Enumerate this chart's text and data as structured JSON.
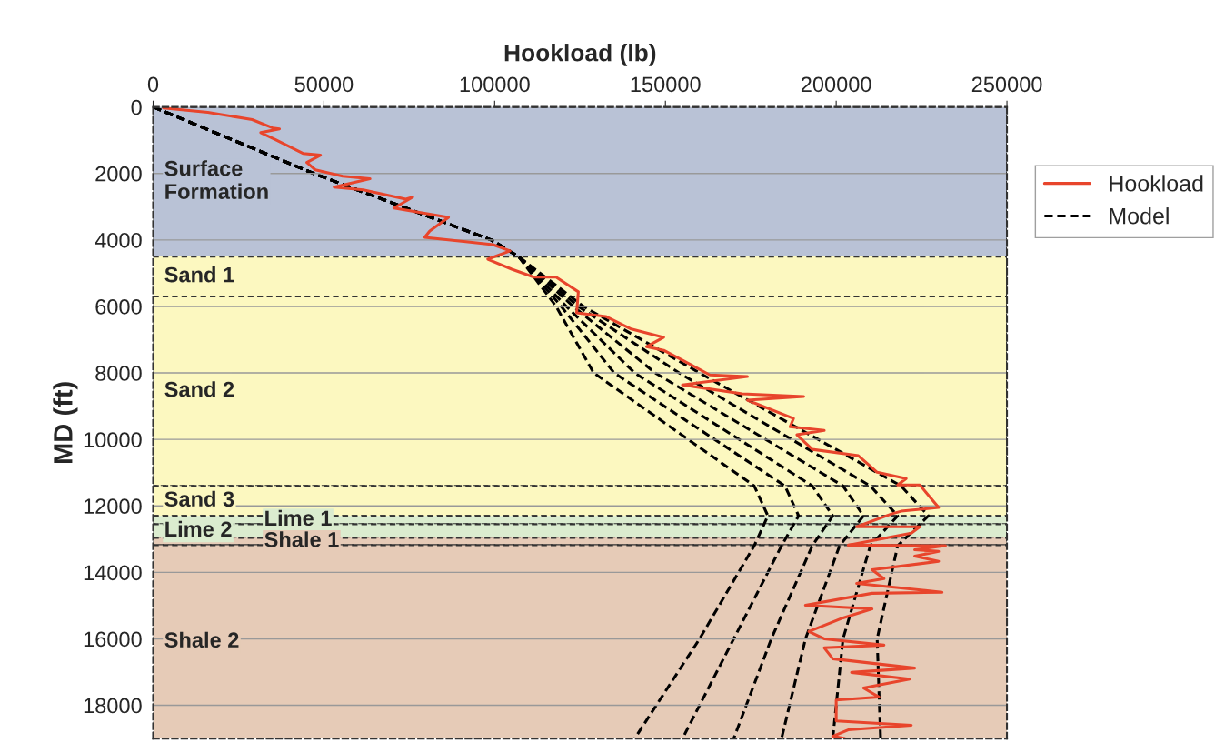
{
  "chart_data": {
    "type": "line",
    "xlabel": "Hookload (lb)",
    "ylabel": "MD (ft)",
    "xlim": [
      0,
      250000
    ],
    "xticks": [
      0,
      50000,
      100000,
      150000,
      200000,
      250000
    ],
    "ylim": [
      19000,
      0
    ],
    "yticks": [
      0,
      2000,
      4000,
      6000,
      8000,
      10000,
      12000,
      14000,
      16000,
      18000
    ],
    "grid": "y",
    "legend": "right",
    "bands": [
      {
        "axis": "y",
        "from": 0,
        "to": 4500,
        "label": "Surface\nFormation",
        "color": "#b9c2d6"
      },
      {
        "axis": "y",
        "from": 4500,
        "to": 5700,
        "label": "Sand 1",
        "color": "#fcf8c0"
      },
      {
        "axis": "y",
        "from": 5700,
        "to": 11400,
        "label": "Sand 2",
        "color": "#fcf8c0"
      },
      {
        "axis": "y",
        "from": 11400,
        "to": 12300,
        "label": "Sand 3",
        "color": "#fcf8c0"
      },
      {
        "axis": "y",
        "from": 12300,
        "to": 12550,
        "label": "Lime 1",
        "color": "#dbeccf"
      },
      {
        "axis": "y",
        "from": 12550,
        "to": 12960,
        "label": "Lime 2",
        "color": "#dbeccf"
      },
      {
        "axis": "y",
        "from": 12960,
        "to": 13180,
        "label": "Shale 1",
        "color": "#e6cbb7"
      },
      {
        "axis": "y",
        "from": 13180,
        "to": 19000,
        "label": "Shale 2",
        "color": "#e6cbb7"
      }
    ],
    "series": [
      {
        "name": "Hookload",
        "color": "#e8452c",
        "line_style": "solid",
        "x": [
          3000,
          16000,
          29000,
          35000,
          37000,
          31500,
          36000,
          44000,
          49000,
          45000,
          47500,
          55500,
          63500,
          53000,
          61500,
          74000,
          76000,
          70500,
          86500,
          81000,
          79500,
          99500,
          104500,
          98000,
          105000,
          111500,
          118000,
          124500,
          124000,
          132500,
          140000,
          149500,
          144500,
          149500,
          155000,
          163000,
          174000,
          155000,
          172500,
          190500,
          174000,
          187500,
          186500,
          196500,
          188500,
          193000,
          206500,
          212000,
          220500,
          218000,
          224500,
          230000,
          219000,
          216000,
          206000,
          224500,
          222000,
          203500,
          232000,
          223000,
          230000,
          223000,
          230000,
          210500,
          214000,
          206000,
          231000,
          210500,
          191000,
          210500,
          202000,
          192000,
          196500,
          214000,
          196500,
          199000,
          223000,
          204500,
          221500,
          208000,
          212500,
          200000,
          200000,
          222000,
          203500,
          199000,
          202500
        ],
        "values": [
          30,
          160,
          380,
          630,
          660,
          770,
          990,
          1400,
          1450,
          1670,
          1890,
          2080,
          2160,
          2410,
          2490,
          2770,
          2710,
          3040,
          3320,
          3730,
          3920,
          4140,
          4330,
          4580,
          4880,
          5120,
          5120,
          5560,
          6190,
          6300,
          6680,
          6930,
          7210,
          7320,
          7620,
          8060,
          8110,
          8360,
          8630,
          8710,
          8820,
          9370,
          9620,
          9730,
          9860,
          10300,
          10490,
          10990,
          11180,
          11370,
          11370,
          12050,
          12160,
          12250,
          12630,
          12630,
          12820,
          13180,
          13200,
          13320,
          13370,
          13510,
          13670,
          13920,
          14190,
          14330,
          14600,
          14630,
          14990,
          15100,
          15370,
          15780,
          16000,
          16190,
          16270,
          16600,
          16880,
          17010,
          17210,
          17480,
          17750,
          17840,
          18470,
          18600,
          18740,
          18930,
          19000
        ]
      },
      {
        "name": "Model",
        "color": "#000000",
        "line_style": "dashed",
        "x": [
          0,
          47000,
          99000,
          107000,
          118000,
          129000,
          176000,
          180000,
          176000,
          160000,
          141000
        ],
        "values": [
          0,
          2000,
          4000,
          4500,
          6000,
          8000,
          11400,
          12300,
          13200,
          16000,
          19000
        ]
      },
      {
        "color": "#000000",
        "line_style": "dashed",
        "x": [
          0,
          47000,
          99000,
          107000,
          119500,
          135000,
          185000,
          189000,
          184000,
          170000,
          155000
        ],
        "values": [
          0,
          2000,
          4000,
          4500,
          6000,
          8000,
          11400,
          12300,
          13200,
          16000,
          19000
        ]
      },
      {
        "color": "#000000",
        "line_style": "dashed",
        "x": [
          0,
          47000,
          99000,
          107000,
          121000,
          141000,
          193000,
          199000,
          193000,
          181000,
          170000
        ],
        "values": [
          0,
          2000,
          4000,
          4500,
          6000,
          8000,
          11400,
          12300,
          13200,
          16000,
          19000
        ]
      },
      {
        "color": "#000000",
        "line_style": "dashed",
        "x": [
          0,
          47000,
          99000,
          107000,
          123000,
          147000,
          202000,
          208000,
          201000,
          191000,
          184000
        ],
        "values": [
          0,
          2000,
          4000,
          4500,
          6000,
          8000,
          11400,
          12300,
          13200,
          16000,
          19000
        ]
      },
      {
        "color": "#000000",
        "line_style": "dashed",
        "x": [
          0,
          47000,
          99000,
          107000,
          124500,
          154000,
          210000,
          218000,
          210000,
          202000,
          199000
        ],
        "values": [
          0,
          2000,
          4000,
          4500,
          6000,
          8000,
          11400,
          12300,
          13200,
          16000,
          19000
        ]
      },
      {
        "color": "#000000",
        "line_style": "dashed",
        "x": [
          0,
          47000,
          99000,
          107000,
          126000,
          160000,
          219000,
          227000,
          218000,
          212000,
          213000
        ],
        "values": [
          0,
          2000,
          4000,
          4500,
          6000,
          8000,
          11400,
          12300,
          13200,
          16000,
          19000
        ]
      }
    ]
  }
}
